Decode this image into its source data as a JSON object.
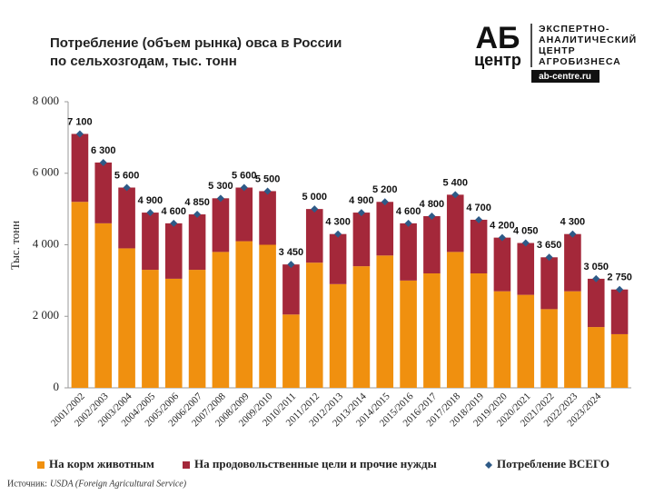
{
  "chart_data": {
    "type": "bar",
    "stacked": true,
    "title": [
      "Потребление (объем рынка) овса в России",
      "по сельхозгодам, тыс. тонн"
    ],
    "y_label": "Тыс. тонн",
    "categories": [
      "2001/2002",
      "2002/2003",
      "2003/2004",
      "2004/2005",
      "2005/2006",
      "2006/2007",
      "2007/2008",
      "2008/2009",
      "2009/2010",
      "2010/2011",
      "2011/2012",
      "2012/2013",
      "2013/2014",
      "2014/2015",
      "2015/2016",
      "2016/2017",
      "2017/2018",
      "2018/2019",
      "2019/2020",
      "2020/2021",
      "2021/2022",
      "2022/2023",
      "2023/2024",
      null
    ],
    "series": [
      {
        "name": "На корм животным",
        "color": "#f0900f",
        "stack": true,
        "values": [
          5200,
          4600,
          3900,
          3300,
          3050,
          3300,
          3800,
          4100,
          4000,
          2050,
          3500,
          2900,
          3400,
          3700,
          3000,
          3200,
          3800,
          3200,
          2700,
          2600,
          2200,
          2700,
          1700,
          1500
        ]
      },
      {
        "name": "На продовольственные цели и прочие нужды",
        "color": "#a4283a",
        "stack": true,
        "values": [
          1900,
          1700,
          1700,
          1600,
          1550,
          1550,
          1500,
          1500,
          1500,
          1400,
          1500,
          1400,
          1500,
          1500,
          1600,
          1600,
          1600,
          1500,
          1500,
          1450,
          1450,
          1600,
          1350,
          1250
        ]
      },
      {
        "name": "Потребление ВСЕГО",
        "color": "#2e5a87",
        "marker": "diamond",
        "values": [
          7100,
          6300,
          5600,
          4900,
          4600,
          4850,
          5300,
          5600,
          5500,
          3450,
          5000,
          4300,
          4900,
          5200,
          4600,
          4800,
          5400,
          4700,
          4200,
          4050,
          3650,
          4300,
          3050,
          2750
        ],
        "value_labels": [
          "7 100",
          "6 300",
          "5 600",
          "4 900",
          "4 600",
          "4 850",
          "5 300",
          "5 600",
          "5 500",
          "3 450",
          "5 000",
          "4 300",
          "4 900",
          "5 200",
          "4 600",
          "4 800",
          "5 400",
          "4 700",
          "4 200",
          "4 050",
          "3 650",
          "4 300",
          "3 050",
          "2 750"
        ]
      }
    ],
    "ylim": [
      0,
      8000
    ],
    "yticks": [
      0,
      {
        "value": 2000,
        "label": "2 000"
      },
      {
        "value": 4000,
        "label": "4 000"
      },
      {
        "value": 6000,
        "label": "6 000"
      },
      {
        "value": 8000,
        "label": "8 000"
      }
    ],
    "legend": "bottom",
    "source_label": "Источник:",
    "source": "USDA (Foreign Agricultural Service)",
    "logo": {
      "big": "АБ",
      "small": "центр",
      "text": [
        "ЭКСПЕРТНО-",
        "АНАЛИТИЧЕСКИЙ",
        "ЦЕНТР",
        "АГРОБИЗНЕСА"
      ],
      "url": "ab-centre.ru"
    }
  }
}
